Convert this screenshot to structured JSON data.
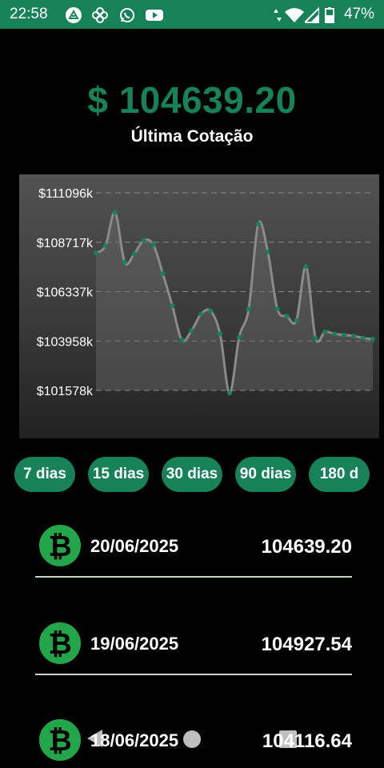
{
  "status_bar": {
    "time": "22:58",
    "battery": "47%",
    "notification_icons": [
      "alpha-icon",
      "fan-icon",
      "whatsapp-icon",
      "youtube-icon"
    ],
    "system_icons": [
      "data-arrows-icon",
      "wifi-icon",
      "signal-icon",
      "battery-icon"
    ],
    "bar_color": "#178257"
  },
  "header": {
    "price": "$ 104639.20",
    "subtitle": "Última Cotação"
  },
  "chart_data": {
    "type": "area",
    "y_ticks": [
      "$111096k",
      "$108717k",
      "$106337k",
      "$103958k",
      "$101578k"
    ],
    "ylim": [
      101578,
      111096
    ],
    "x": [
      1,
      2,
      3,
      4,
      5,
      6,
      7,
      8,
      9,
      10,
      11,
      12,
      13,
      14,
      15,
      16,
      17,
      18,
      19,
      20,
      21,
      22,
      23,
      24,
      25,
      26,
      27,
      28,
      29,
      30
    ],
    "values": [
      108200,
      108550,
      110150,
      107750,
      108150,
      108800,
      108600,
      107200,
      105650,
      104000,
      104450,
      105250,
      105400,
      104300,
      101450,
      104150,
      105500,
      109600,
      108250,
      105500,
      105150,
      104950,
      107550,
      104100,
      104400,
      104300,
      104250,
      104200,
      104100,
      104050
    ],
    "line_color": "#8a8a8a",
    "point_color": "#178257",
    "grid": true
  },
  "periods": [
    "7 dias",
    "15 dias",
    "30 dias",
    "90 dias",
    "180 d"
  ],
  "accent_color": "#178257",
  "quotes": [
    {
      "date": "20/06/2025",
      "value": "104639.20"
    },
    {
      "date": "19/06/2025",
      "value": "104927.54"
    },
    {
      "date": "18/06/2025",
      "value": "104116.64"
    }
  ],
  "nav_icons": [
    "back-icon",
    "home-icon",
    "recents-icon"
  ]
}
